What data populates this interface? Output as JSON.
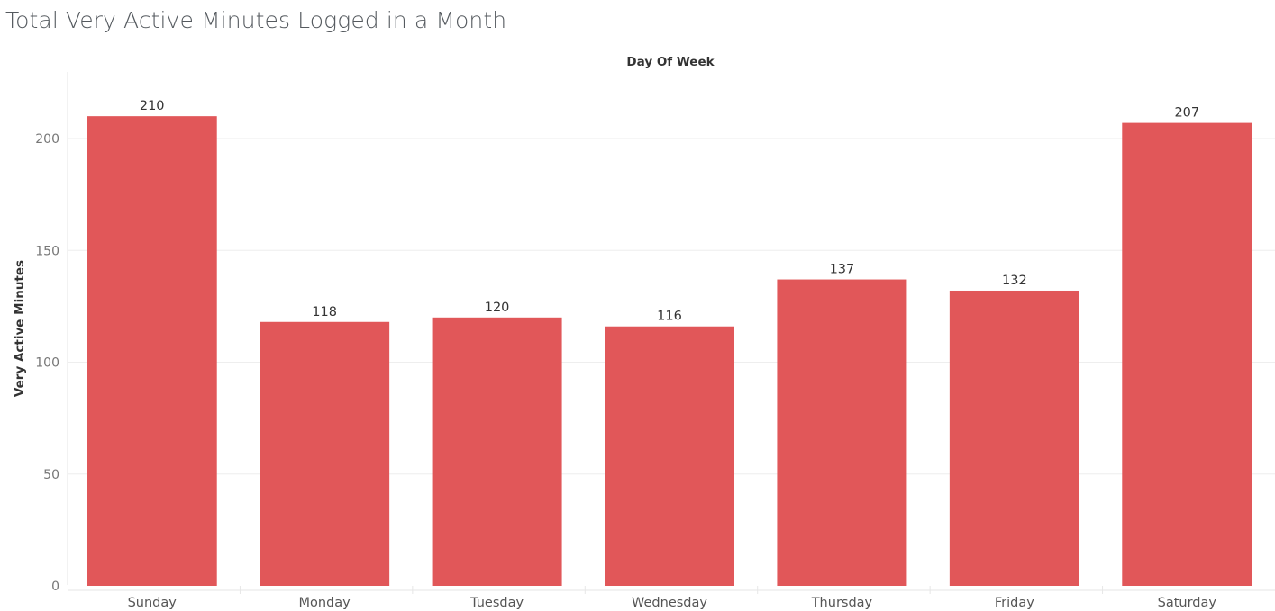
{
  "title": "Total Very Active Minutes Logged in a Month",
  "chart_data": {
    "type": "bar",
    "title": "Total Very Active Minutes Logged in a Month",
    "xlabel": "Day Of Week",
    "ylabel": "Very Active Minutes",
    "categories": [
      "Sunday",
      "Monday",
      "Tuesday",
      "Wednesday",
      "Thursday",
      "Friday",
      "Saturday"
    ],
    "values": [
      210,
      118,
      120,
      116,
      137,
      132,
      207
    ],
    "ylim": [
      0,
      230
    ],
    "yticks": [
      0,
      50,
      100,
      150,
      200
    ],
    "bar_color": "#e15759",
    "grid": true,
    "data_labels": true,
    "xlabel_position": "top"
  }
}
